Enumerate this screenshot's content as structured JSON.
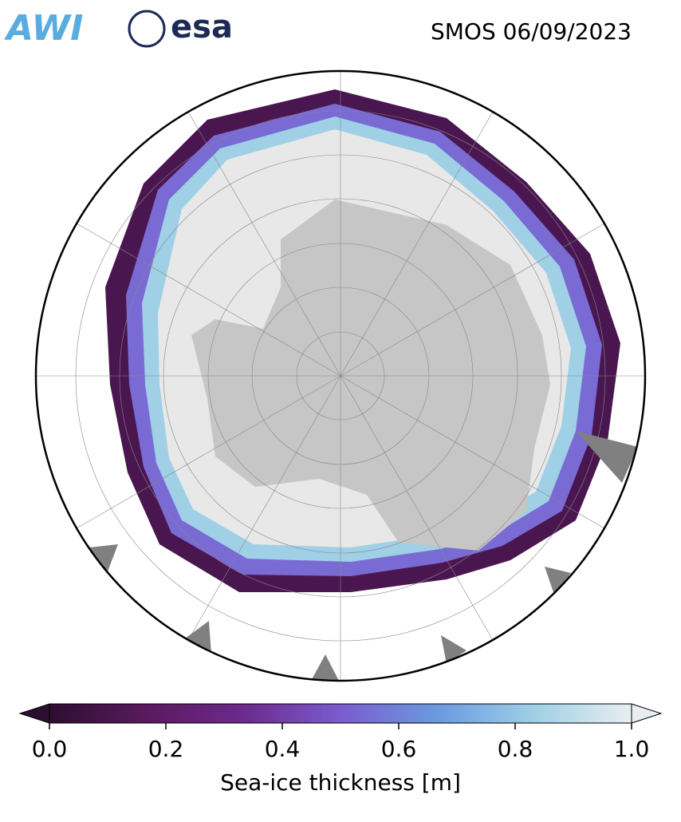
{
  "header": {
    "logos": [
      "AWI",
      "esa"
    ],
    "title": "SMOS 06/09/2023"
  },
  "colorbar": {
    "label": "Sea-ice thickness [m]",
    "lim": [
      0,
      1
    ],
    "ticks": [
      {
        "value": 0,
        "label": "0.0"
      },
      {
        "value": 0.2,
        "label": "0.2"
      },
      {
        "value": 0.4,
        "label": "0.4"
      },
      {
        "value": 0.6,
        "label": "0.6"
      },
      {
        "value": 0.8,
        "label": "0.8"
      },
      {
        "value": 1,
        "label": "1.0"
      }
    ],
    "colors": [
      "#2c0e2f",
      "#5a1a5e",
      "#6c2a8c",
      "#7a5cd0",
      "#6a9ae0",
      "#9fd0e6",
      "#e8eef0"
    ]
  }
}
